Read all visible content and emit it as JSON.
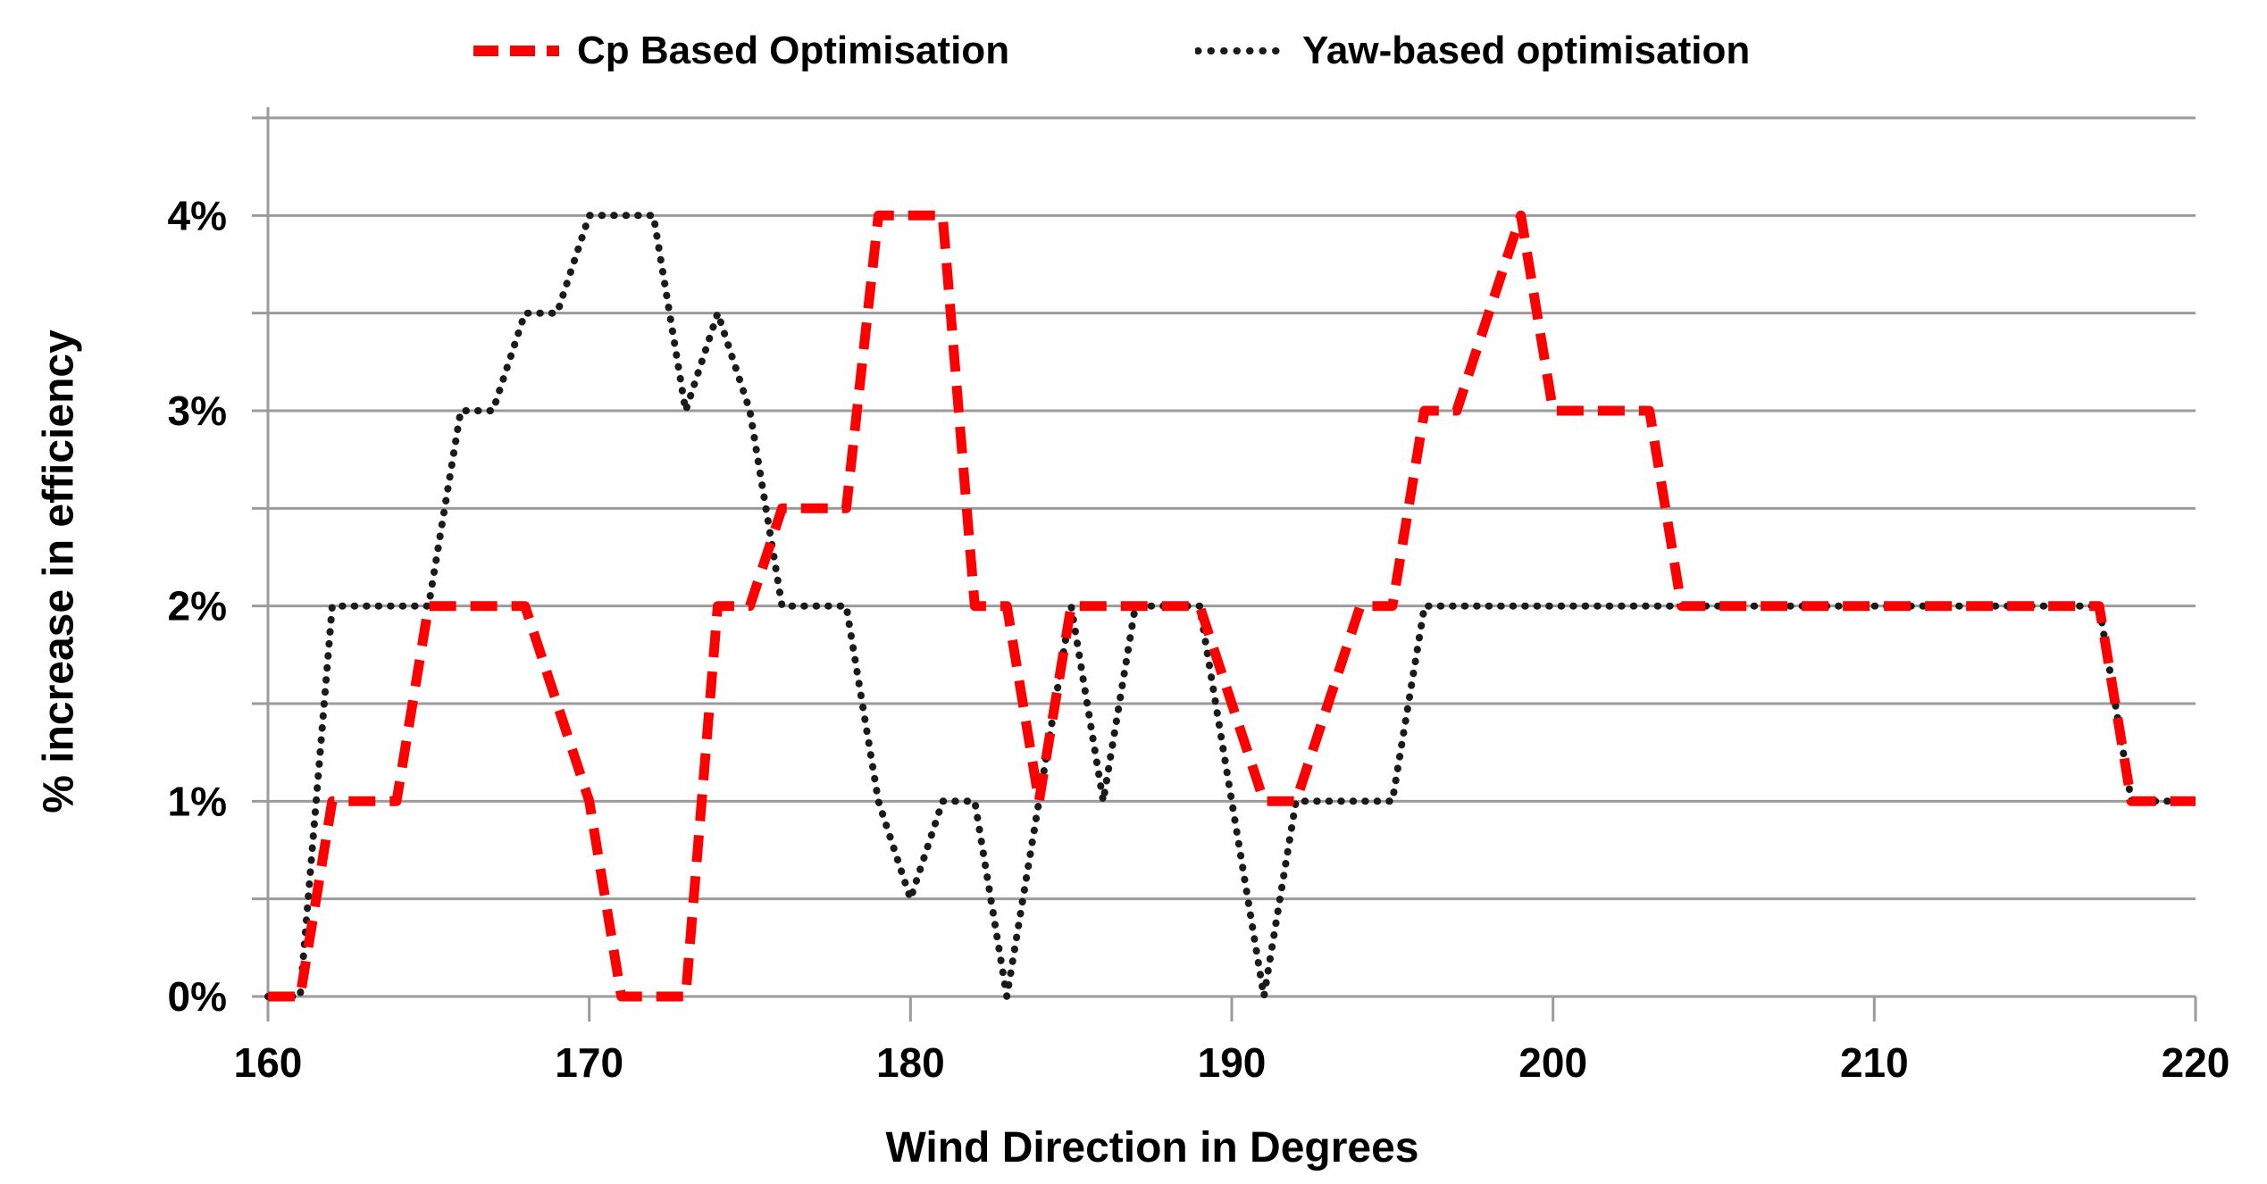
{
  "colors": {
    "gridline": "#9B9B9B",
    "axis": "#9B9B9B",
    "cp_red": "#FF0000",
    "yaw_black": "#1A1A1A",
    "label_text": "#000000"
  },
  "chart_data": {
    "type": "line",
    "xlabel": "Wind Direction in Degrees",
    "ylabel": "% increase in efficiency",
    "x_range": [
      160,
      220
    ],
    "y_range_pct": [
      0,
      4.5
    ],
    "x_start": 160,
    "x_step": 1,
    "x_ticks": [
      160,
      170,
      180,
      190,
      200,
      210,
      220
    ],
    "y_tick_values": [
      0,
      1,
      2,
      3,
      4
    ],
    "y_tick_labels": [
      "0%",
      "1%",
      "2%",
      "3%",
      "4%"
    ],
    "gridline_step_pct": 0.5,
    "grid_on": true,
    "legend_position": "top",
    "series": [
      {
        "name": "Cp Based Optimisation",
        "color": "#FF0000",
        "line_style": "dashed",
        "values": [
          0,
          0,
          1,
          1,
          1,
          2,
          2,
          2,
          2,
          1.5,
          1,
          0,
          0,
          0,
          2,
          2,
          2.5,
          2.5,
          2.5,
          4,
          4,
          4,
          2,
          2,
          1,
          2,
          2,
          2,
          2,
          2,
          1.5,
          1,
          1,
          1.5,
          2,
          2,
          3,
          3,
          3.5,
          4,
          3,
          3,
          3,
          3,
          2,
          2,
          2,
          2,
          2,
          2,
          2,
          2,
          2,
          2,
          2,
          2,
          2,
          2,
          1,
          1,
          1
        ]
      },
      {
        "name": "Yaw-based optimisation",
        "color": "#1A1A1A",
        "line_style": "dotted",
        "values": [
          0,
          0,
          2,
          2,
          2,
          2,
          3,
          3,
          3.5,
          3.5,
          4,
          4,
          4,
          3,
          3.5,
          3,
          2,
          2,
          2,
          1,
          0.5,
          1,
          1,
          0,
          1,
          2,
          1,
          2,
          2,
          2,
          1,
          0,
          1,
          1,
          1,
          1,
          2,
          2,
          2,
          2,
          2,
          2,
          2,
          2,
          2,
          2,
          2,
          2,
          2,
          2,
          2,
          2,
          2,
          2,
          2,
          2,
          2,
          2,
          1,
          1,
          1
        ]
      }
    ]
  }
}
